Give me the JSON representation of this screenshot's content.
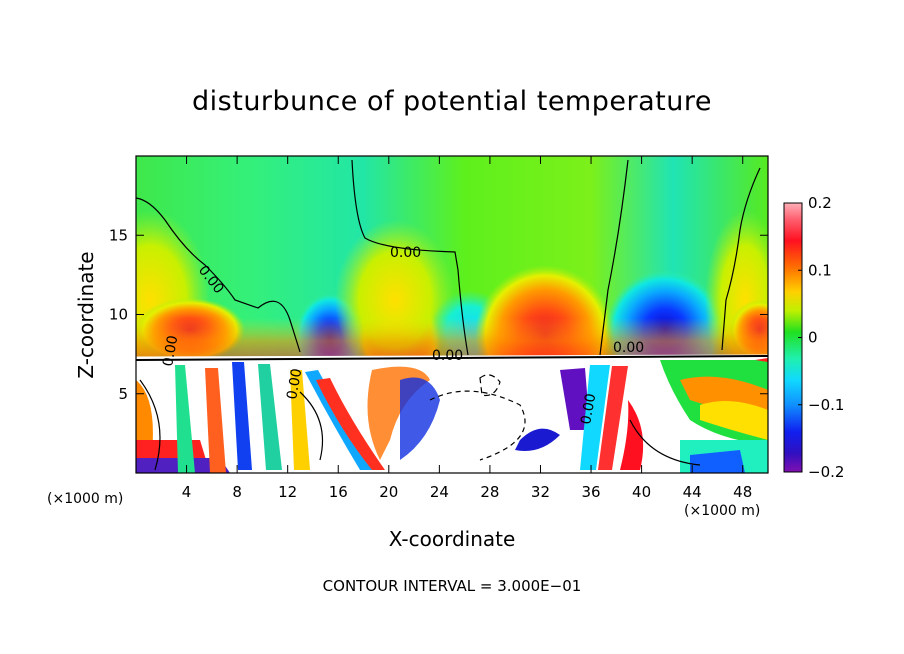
{
  "chart_data": {
    "type": "heatmap",
    "title": "disturbunce of potential temperature",
    "xlabel": "X-coordinate",
    "ylabel": "Z-coordinate",
    "x_unit_label": "(×1000 m)",
    "x_ticks": [
      4,
      8,
      12,
      16,
      20,
      24,
      28,
      32,
      36,
      40,
      44,
      48
    ],
    "y_ticks": [
      5,
      10,
      15
    ],
    "xlim": [
      0,
      50
    ],
    "ylim": [
      0,
      20
    ],
    "colorbar": {
      "range": [
        -0.2,
        0.2
      ],
      "tick_values": [
        0.2,
        0.1,
        0,
        -0.1,
        -0.2
      ],
      "tick_labels": [
        "0.2",
        "0.1",
        "0",
        "−0.1",
        "−0.2"
      ]
    },
    "contour_labels": [
      "0.00",
      "0.00",
      "0.00",
      "0.00",
      "0.00",
      "0.00",
      "0.00"
    ],
    "contour_interval_text": "CONTOUR INTERVAL = 3.000E−01",
    "legend": "colorbar-right"
  }
}
